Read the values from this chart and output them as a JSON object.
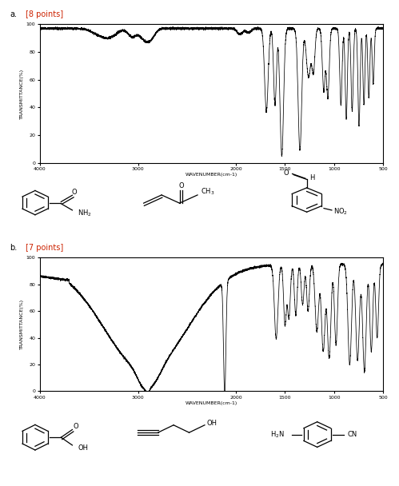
{
  "points_a": "[8 points]",
  "points_b": "[7 points]",
  "xlabel": "WAVENUMBER(cm-1)",
  "ylabel": "TRANSMITTANCE(%)",
  "xmin": 4000,
  "xmax": 500,
  "ymin": 0,
  "ymax": 100,
  "bg_color": "#ffffff",
  "line_color": "#000000",
  "red_color": "#cc2200"
}
